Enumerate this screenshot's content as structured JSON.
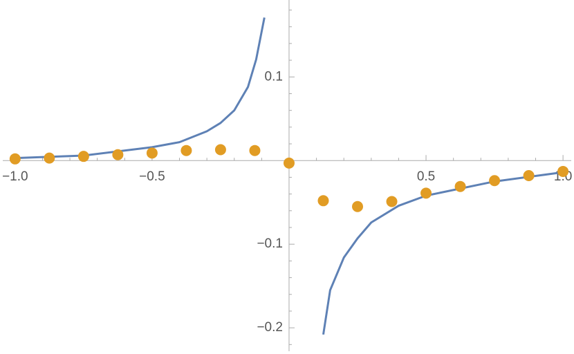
{
  "chart_data": {
    "type": "line",
    "xlim": [
      -1.045,
      1.03
    ],
    "ylim": [
      -0.228,
      0.192
    ],
    "xticks": [
      {
        "value": -1,
        "label": "−1.0"
      },
      {
        "value": -0.5,
        "label": "−0.5"
      },
      0.5,
      {
        "value": 1,
        "label": "1.0"
      }
    ],
    "yticks": [
      {
        "value": -0.2,
        "label": "−0.2"
      },
      {
        "value": -0.1,
        "label": "−0.1"
      },
      0.1
    ],
    "xminorticks": [
      -0.9,
      -0.8,
      -0.7,
      -0.6,
      -0.4,
      -0.3,
      -0.2,
      -0.1,
      0.1,
      0.2,
      0.3,
      0.4,
      0.6,
      0.7,
      0.8,
      0.9
    ],
    "yminorticks": [
      -0.22,
      -0.18,
      -0.16,
      -0.14,
      -0.12,
      -0.08,
      -0.06,
      -0.04,
      -0.02,
      0.02,
      0.04,
      0.06,
      0.08,
      0.12,
      0.14,
      0.16,
      0.18
    ],
    "series": [
      {
        "type": "line",
        "color": "#5e81b5",
        "x": [
          -1,
          -0.75,
          -0.5,
          -0.4,
          -0.3,
          -0.25,
          -0.2,
          -0.15,
          -0.12,
          -0.09,
          null,
          0.125,
          0.15,
          0.2,
          0.25,
          0.3,
          0.4,
          0.5,
          0.75,
          1
        ],
        "values": [
          0.003,
          0.006,
          0.016,
          0.022,
          0.035,
          0.045,
          0.06,
          0.088,
          0.121,
          0.171,
          null,
          -0.208,
          -0.155,
          -0.116,
          -0.093,
          -0.074,
          -0.054,
          -0.042,
          -0.025,
          -0.014
        ]
      },
      {
        "type": "scatter",
        "color": "#e19c24",
        "x": [
          -1,
          -0.875,
          -0.75,
          -0.625,
          -0.5,
          -0.375,
          -0.25,
          -0.125,
          0,
          0.125,
          0.25,
          0.375,
          0.5,
          0.625,
          0.75,
          0.875,
          1
        ],
        "values": [
          0.002,
          0.003,
          0.005,
          0.007,
          0.009,
          0.012,
          0.013,
          0.012,
          -0.003,
          -0.048,
          -0.055,
          -0.049,
          -0.039,
          -0.031,
          -0.024,
          -0.018,
          -0.013
        ]
      }
    ]
  }
}
